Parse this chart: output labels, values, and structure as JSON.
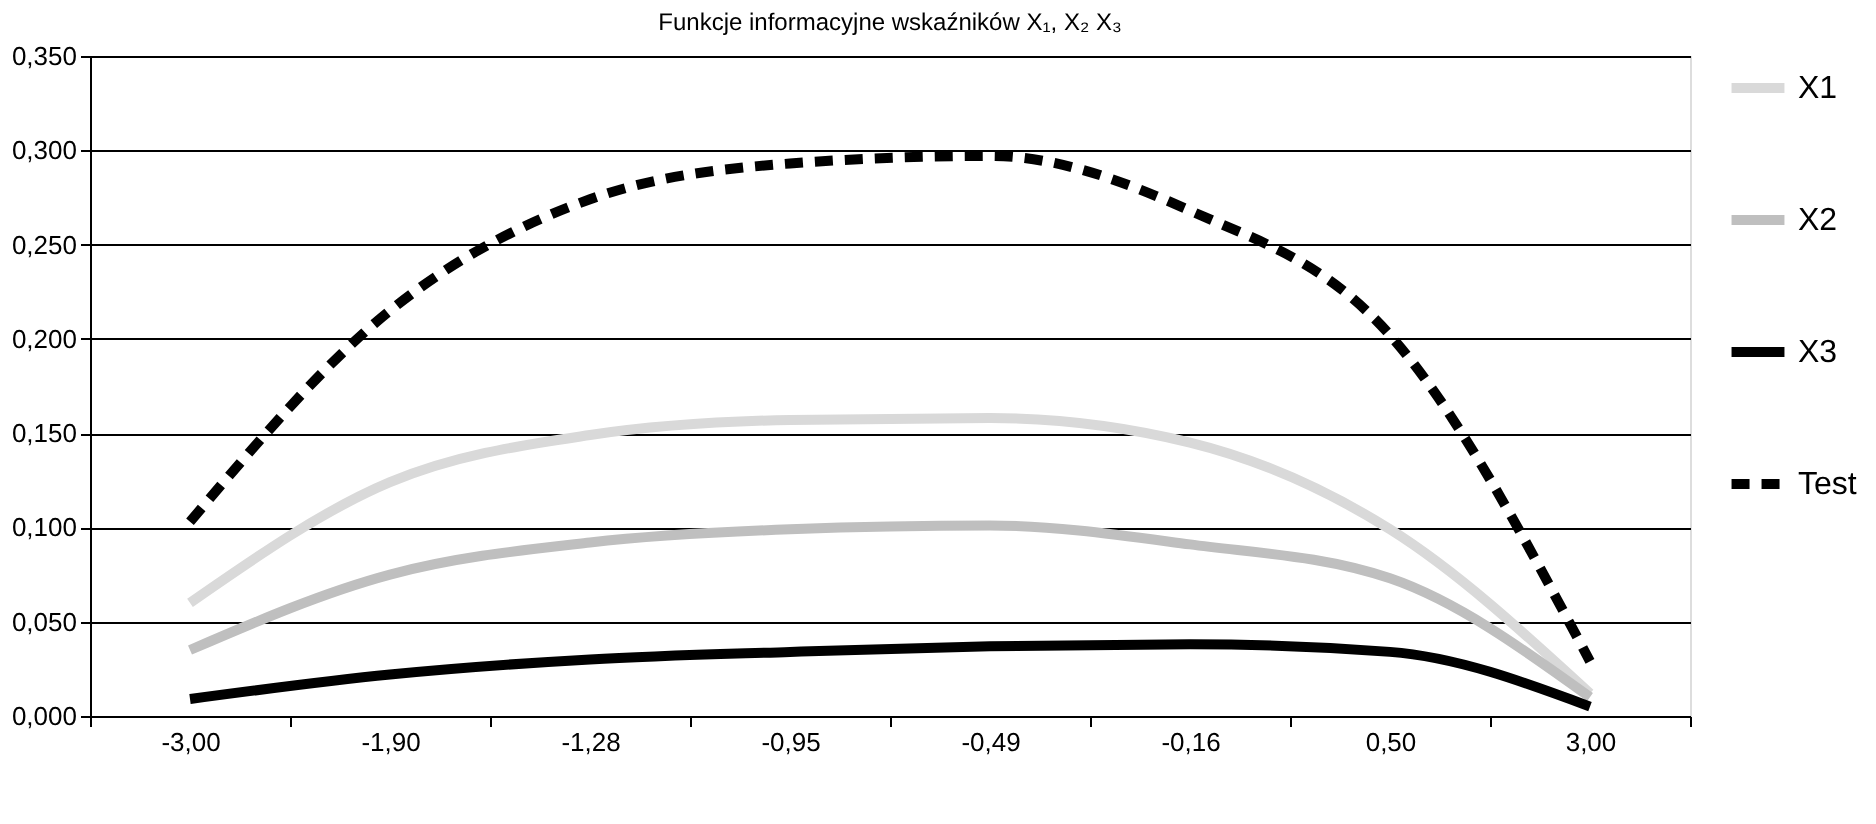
{
  "chart_data": {
    "type": "line",
    "title": "Funkcje informacyjne wskaźników X₁, X₂ X₃",
    "categories": [
      "-3,00",
      "-1,90",
      "-1,28",
      "-0,95",
      "-0,49",
      "-0,16",
      "0,50",
      "3,00"
    ],
    "series": [
      {
        "name": "X1",
        "color": "#d9d9d9",
        "line_style": "solid",
        "values": [
          0.06,
          0.124,
          0.149,
          0.157,
          0.158,
          0.145,
          0.099,
          0.012
        ]
      },
      {
        "name": "X2",
        "color": "#bfbfbf",
        "line_style": "solid",
        "values": [
          0.035,
          0.075,
          0.092,
          0.099,
          0.101,
          0.091,
          0.073,
          0.01
        ]
      },
      {
        "name": "X3",
        "color": "#000000",
        "line_style": "solid",
        "values": [
          0.009,
          0.022,
          0.03,
          0.034,
          0.037,
          0.038,
          0.034,
          0.005
        ]
      },
      {
        "name": "Test",
        "color": "#000000",
        "line_style": "dashed",
        "values": [
          0.103,
          0.215,
          0.274,
          0.293,
          0.297,
          0.268,
          0.202,
          0.029
        ]
      }
    ],
    "ylim": [
      0,
      0.35
    ],
    "yticks": [
      {
        "value": 0,
        "label": "0,000"
      },
      {
        "value": 0.05,
        "label": "0,050"
      },
      {
        "value": 0.1,
        "label": "0,100"
      },
      {
        "value": 0.15,
        "label": "0,150"
      },
      {
        "value": 0.2,
        "label": "0,200"
      },
      {
        "value": 0.25,
        "label": "0,250"
      },
      {
        "value": 0.3,
        "label": "0,300"
      },
      {
        "value": 0.35,
        "label": "0,350"
      }
    ],
    "grid": "y",
    "legend": "right",
    "marker": "none"
  }
}
